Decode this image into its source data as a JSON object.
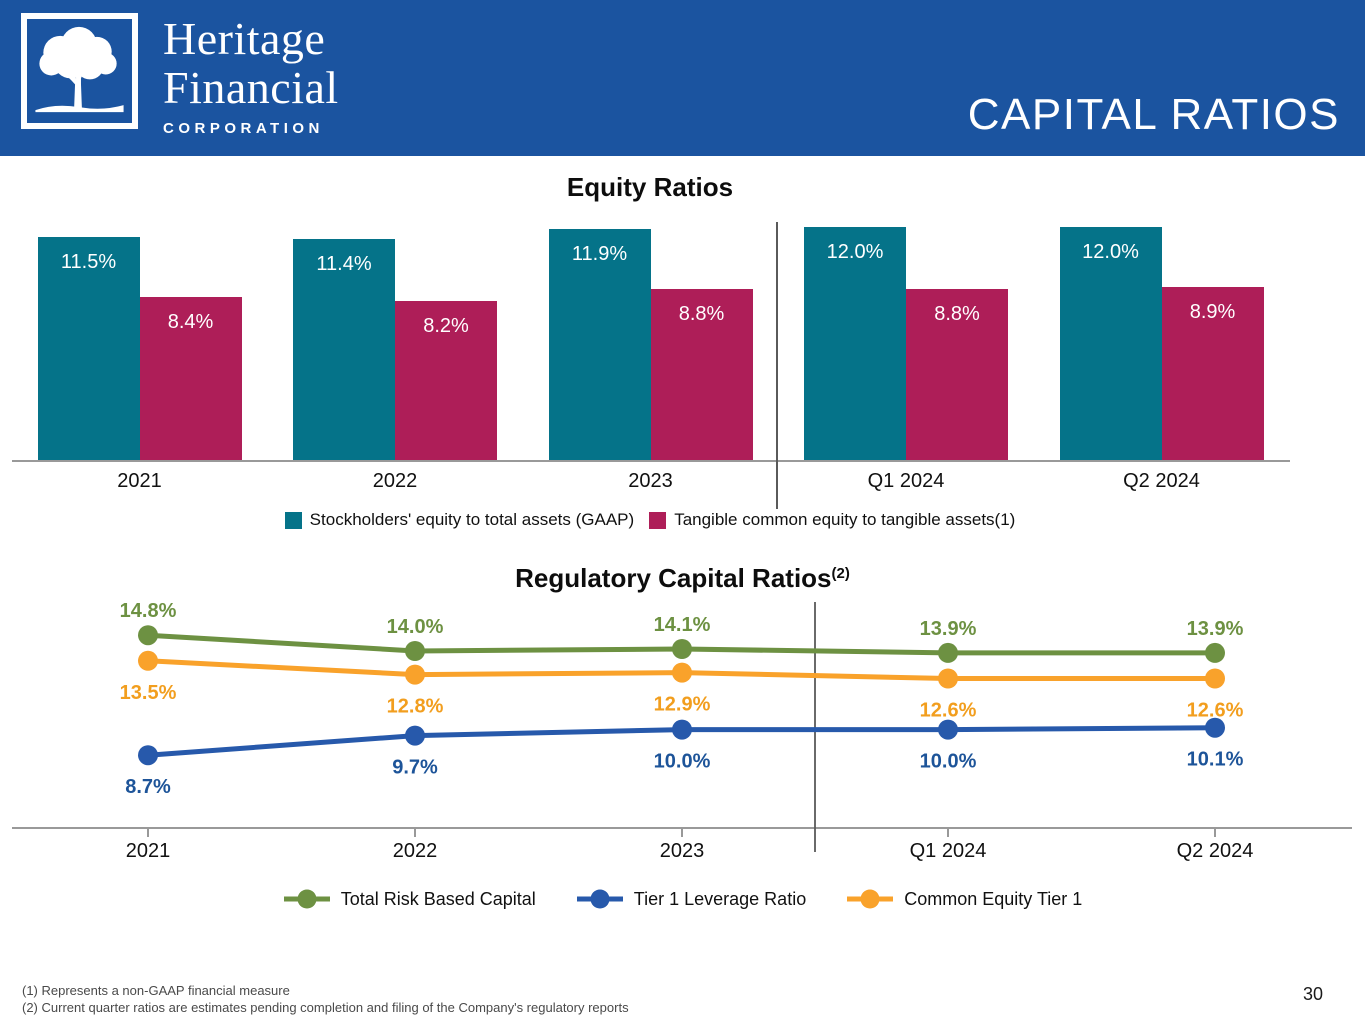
{
  "header": {
    "title": "CAPITAL RATIOS",
    "logo": {
      "line1": "Heritage",
      "line2": "Financial",
      "line3": "CORPORATION"
    }
  },
  "colors": {
    "header_blue": "#1b54a0",
    "teal": "#057389",
    "crimson": "#ae1e58",
    "green": "#6d9142",
    "line_blue": "#2759ab",
    "amber": "#f9a22b",
    "axis_gray": "#999999",
    "divider_gray": "#5a5a5a"
  },
  "chart_data": [
    {
      "type": "bar",
      "title": "Equity Ratios",
      "categories": [
        "2021",
        "2022",
        "2023",
        "Q1 2024",
        "Q2 2024"
      ],
      "series": [
        {
          "name": "Stockholders' equity to total assets (GAAP)",
          "color": "#057389",
          "values": [
            11.5,
            11.4,
            11.9,
            12.0,
            12.0
          ],
          "labels": [
            "11.5%",
            "11.4%",
            "11.9%",
            "12.0%",
            "12.0%"
          ]
        },
        {
          "name": "Tangible common equity to tangible assets(1)",
          "color": "#ae1e58",
          "values": [
            8.4,
            8.2,
            8.8,
            8.8,
            8.9
          ],
          "labels": [
            "8.4%",
            "8.2%",
            "8.8%",
            "8.8%",
            "8.9%"
          ]
        }
      ],
      "value_suffix": "%",
      "ylim": [
        0,
        12
      ],
      "grid": false,
      "legend_position": "bottom",
      "divider_between": [
        "2023",
        "Q1 2024"
      ]
    },
    {
      "type": "line",
      "title": "Regulatory Capital Ratios",
      "title_superscript": "(2)",
      "categories": [
        "2021",
        "2022",
        "2023",
        "Q1 2024",
        "Q2 2024"
      ],
      "series": [
        {
          "name": "Total Risk Based Capital",
          "color": "#6d9142",
          "label_color": "#6d9142",
          "label_position": "above",
          "values": [
            14.8,
            14.0,
            14.1,
            13.9,
            13.9
          ],
          "labels": [
            "14.8%",
            "14.0%",
            "14.1%",
            "13.9%",
            "13.9%"
          ]
        },
        {
          "name": "Tier 1 Leverage Ratio",
          "color": "#2759ab",
          "label_color": "#1d5499",
          "label_position": "below",
          "values": [
            8.7,
            9.7,
            10.0,
            10.0,
            10.1
          ],
          "labels": [
            "8.7%",
            "9.7%",
            "10.0%",
            "10.0%",
            "10.1%"
          ]
        },
        {
          "name": "Common Equity Tier 1",
          "color": "#f9a22b",
          "label_color": "#f29e1e",
          "label_position": "below",
          "values": [
            13.5,
            12.8,
            12.9,
            12.6,
            12.6
          ],
          "labels": [
            "13.5%",
            "12.8%",
            "12.9%",
            "12.6%",
            "12.6%"
          ]
        }
      ],
      "value_suffix": "%",
      "ylim": [
        5,
        16.8
      ],
      "grid": false,
      "legend_position": "bottom",
      "divider_between": [
        "2023",
        "Q1 2024"
      ]
    }
  ],
  "footnotes": [
    "(1) Represents a non-GAAP financial measure",
    "(2) Current quarter ratios are estimates pending completion and filing of the Company's regulatory reports"
  ],
  "page_number": "30"
}
